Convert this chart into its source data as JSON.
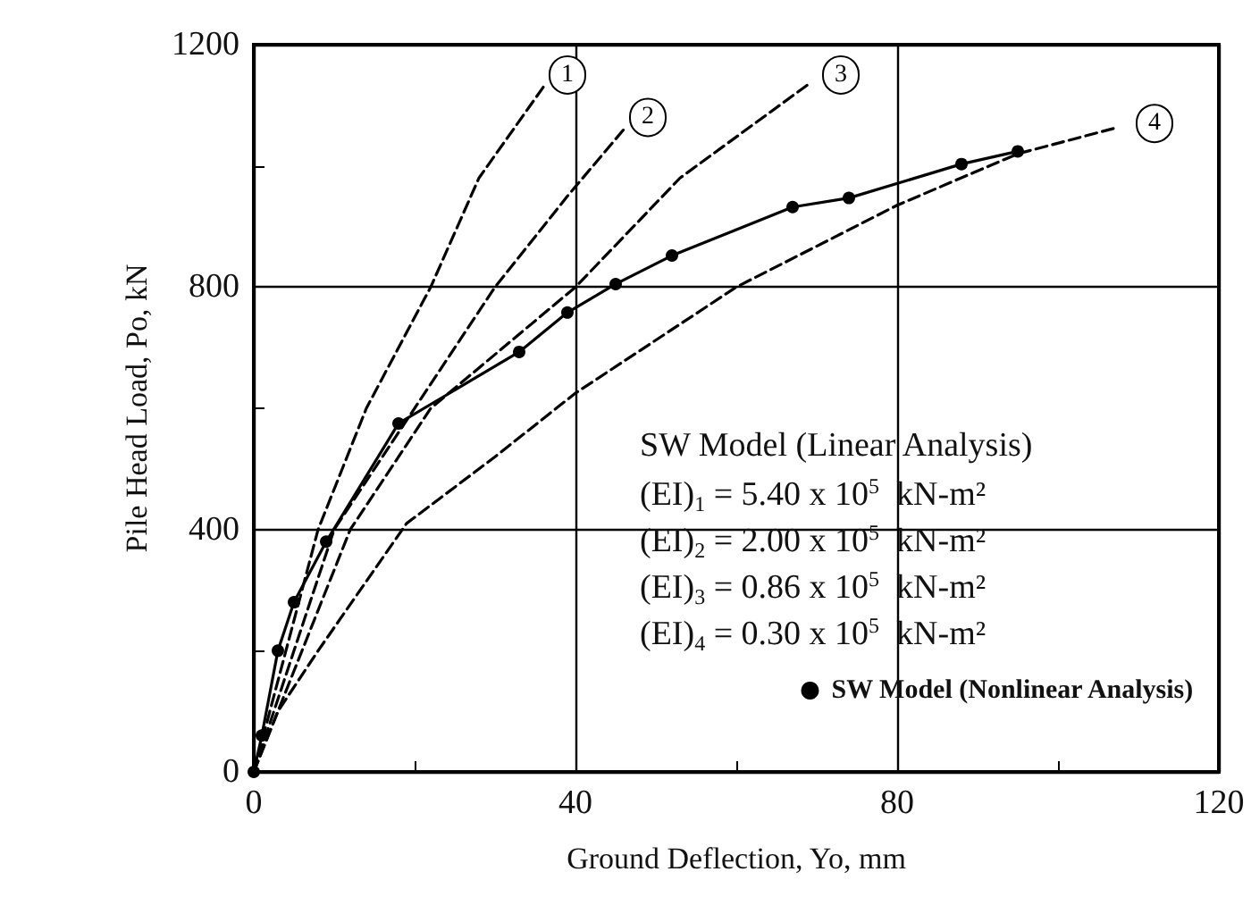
{
  "chart_data": {
    "type": "line",
    "xlabel": "Ground Deflection, Yo, mm",
    "ylabel": "Pile Head Load, Po, kN",
    "xlim": [
      0,
      120
    ],
    "xticks": [
      0,
      {
        "value": 20,
        "label": null
      },
      40,
      {
        "value": 60,
        "label": null
      },
      80,
      {
        "value": 100,
        "label": null
      },
      120
    ],
    "ylim": [
      0,
      1200
    ],
    "yticks": [
      0,
      {
        "value": 200,
        "label": null
      },
      400,
      {
        "value": 600,
        "label": null
      },
      800,
      {
        "value": 1000,
        "label": null
      },
      1200
    ],
    "grid": true,
    "legend": "bottom right",
    "series": [
      {
        "color": "#000000",
        "line_style": "dashed",
        "marker": "none",
        "x": [
          0,
          4,
          8,
          14,
          22,
          28,
          36
        ],
        "values": [
          0,
          200,
          400,
          600,
          800,
          980,
          1130
        ]
      },
      {
        "color": "#000000",
        "line_style": "dashed",
        "marker": "none",
        "x": [
          0,
          5,
          10,
          20,
          30,
          39,
          46
        ],
        "values": [
          0,
          200,
          400,
          600,
          800,
          950,
          1060
        ]
      },
      {
        "color": "#000000",
        "line_style": "dashed",
        "marker": "none",
        "x": [
          0,
          6,
          12,
          22,
          40,
          53,
          69
        ],
        "values": [
          0,
          200,
          400,
          600,
          800,
          980,
          1135
        ]
      },
      {
        "color": "#000000",
        "line_style": "dashed",
        "marker": "none",
        "x": [
          0,
          3,
          8,
          19,
          30,
          40,
          60,
          80,
          95,
          107
        ],
        "values": [
          0,
          100,
          200,
          410,
          520,
          625,
          800,
          935,
          1020,
          1062
        ]
      },
      {
        "name": "SW Model (Nonlinear Analysis)",
        "color": "#000000",
        "line_style": "solid",
        "marker": "circle",
        "x": [
          0,
          1,
          3,
          5,
          9,
          18,
          33,
          39,
          45,
          52,
          67,
          74,
          88,
          95
        ],
        "values": [
          0,
          60,
          200,
          280,
          380,
          575,
          693,
          758,
          805,
          852,
          932,
          947,
          1003,
          1024
        ]
      }
    ],
    "annotations": [
      {
        "text": "1",
        "x": 39,
        "y": 1150
      },
      {
        "text": "2",
        "x": 49,
        "y": 1080
      },
      {
        "text": "3",
        "x": 73,
        "y": 1150
      },
      {
        "text": "4",
        "x": 112,
        "y": 1070
      },
      "SW Model (Linear Analysis)",
      "(EI)$_{1}$ = 5.40 x 10$^{5}$  kN-m²",
      "(EI)$_{2}$ = 2.00 x 10$^{5}$  kN-m²",
      "(EI)$_{3}$ = 0.86 x 10$^{5}$  kN-m²",
      "(EI)$_{4}$ = 0.30 x 10$^{5}$  kN-m²"
    ]
  }
}
